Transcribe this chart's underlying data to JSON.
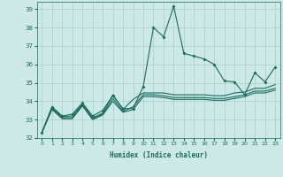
{
  "xlabel": "Humidex (Indice chaleur)",
  "bg_color": "#cce9e7",
  "line_color": "#1a6b5e",
  "grid_color": "#a8cece",
  "xlim": [
    -0.5,
    23.5
  ],
  "ylim": [
    32,
    39.4
  ],
  "xticks": [
    0,
    1,
    2,
    3,
    4,
    5,
    6,
    7,
    8,
    9,
    10,
    11,
    12,
    13,
    14,
    15,
    16,
    17,
    18,
    19,
    20,
    21,
    22,
    23
  ],
  "yticks": [
    32,
    33,
    34,
    35,
    36,
    37,
    38,
    39
  ],
  "series1_x": [
    0,
    1,
    2,
    3,
    4,
    5,
    6,
    7,
    8,
    9,
    10,
    11,
    12,
    13,
    14,
    15,
    16,
    17,
    18,
    19,
    20,
    21,
    22,
    23
  ],
  "series1_y": [
    32.3,
    33.7,
    33.2,
    33.3,
    33.9,
    33.2,
    33.5,
    34.3,
    33.6,
    33.6,
    34.8,
    38.0,
    37.5,
    39.15,
    36.6,
    36.45,
    36.3,
    36.0,
    35.1,
    35.05,
    34.35,
    35.55,
    35.05,
    35.85
  ],
  "series2_x": [
    0,
    1,
    2,
    3,
    4,
    5,
    6,
    7,
    8,
    9,
    10,
    11,
    12,
    13,
    14,
    15,
    16,
    17,
    18,
    19,
    20,
    21,
    22,
    23
  ],
  "series2_y": [
    32.3,
    33.65,
    33.15,
    33.2,
    33.85,
    33.1,
    33.35,
    34.35,
    33.55,
    34.1,
    34.45,
    34.45,
    34.45,
    34.35,
    34.35,
    34.35,
    34.35,
    34.3,
    34.3,
    34.45,
    34.5,
    34.7,
    34.7,
    34.9
  ],
  "series3_x": [
    0,
    1,
    2,
    3,
    4,
    5,
    6,
    7,
    8,
    9,
    10,
    11,
    12,
    13,
    14,
    15,
    16,
    17,
    18,
    19,
    20,
    21,
    22,
    23
  ],
  "series3_y": [
    32.3,
    33.6,
    33.1,
    33.1,
    33.8,
    33.05,
    33.3,
    34.15,
    33.45,
    33.7,
    34.35,
    34.35,
    34.3,
    34.2,
    34.2,
    34.2,
    34.2,
    34.15,
    34.15,
    34.25,
    34.35,
    34.55,
    34.55,
    34.7
  ],
  "series4_x": [
    0,
    1,
    2,
    3,
    4,
    5,
    6,
    7,
    8,
    9,
    10,
    11,
    12,
    13,
    14,
    15,
    16,
    17,
    18,
    19,
    20,
    21,
    22,
    23
  ],
  "series4_y": [
    32.3,
    33.55,
    33.05,
    33.05,
    33.75,
    33.0,
    33.25,
    34.0,
    33.4,
    33.55,
    34.25,
    34.25,
    34.2,
    34.1,
    34.1,
    34.1,
    34.1,
    34.05,
    34.05,
    34.15,
    34.25,
    34.45,
    34.45,
    34.6
  ]
}
